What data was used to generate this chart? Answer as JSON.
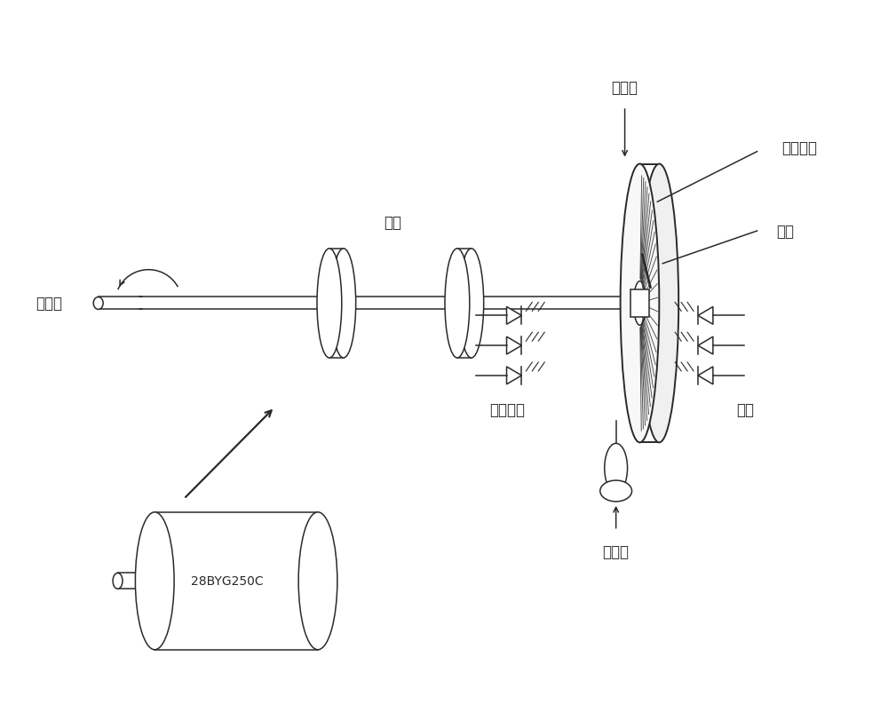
{
  "bg_color": "#ffffff",
  "line_color": "#2a2a2a",
  "fig_width": 10.0,
  "fig_height": 8.12,
  "labels": {
    "input_shaft": "输入轴",
    "bearing": "轴承",
    "main_signal": "主信号",
    "zero_signal": "零位信号",
    "code_disk": "码盘",
    "light_receiver": "受光元件",
    "light_source": "光源",
    "index_scale": "分度尺",
    "motor_label": "28BYG250C"
  },
  "font_size": 12
}
